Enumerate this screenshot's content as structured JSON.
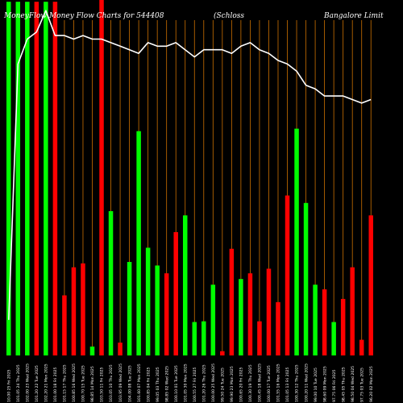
{
  "chart_data": {
    "type": "bar",
    "title_segments": [
      "MoneyFlow Money Flow Charts for 544408",
      "(Schloss",
      "Bangalore Limit"
    ],
    "colors": {
      "background": "#000000",
      "up": "#00ff00",
      "down": "#ff0000",
      "grid": "#cc7000",
      "line": "#ffffff"
    },
    "ylim": [
      0,
      100
    ],
    "line_ylim": [
      0,
      100
    ],
    "bars": [
      {
        "label": "10.00 25 Fri 2025",
        "value": 99.5,
        "direction": "up"
      },
      {
        "label": "101.05 24 Thu 2025",
        "value": 99.5,
        "direction": "up"
      },
      {
        "label": "102.00 23 Wed 2025",
        "value": 99.5,
        "direction": "up"
      },
      {
        "label": "101.20 22 Tue 2025",
        "value": 99.5,
        "direction": "down"
      },
      {
        "label": "102.20 21 Mon 2025",
        "value": 99.5,
        "direction": "up"
      },
      {
        "label": "101.00 18 Fri 2025",
        "value": 99.5,
        "direction": "down"
      },
      {
        "label": "101.15 17 Thu 2025",
        "value": 16.9,
        "direction": "down"
      },
      {
        "label": "100.85 16 Wed 2025",
        "value": 24.8,
        "direction": "down"
      },
      {
        "label": "100.70 15 Tue 2025",
        "value": 25.9,
        "direction": "down"
      },
      {
        "label": "98.85 14 Mon 2025",
        "value": 2.5,
        "direction": "up"
      },
      {
        "label": "103.50 11 Fri 2025",
        "value": 100,
        "direction": "down"
      },
      {
        "label": "103.05 10 Thu 2025",
        "value": 40.6,
        "direction": "up"
      },
      {
        "label": "103.95 09 Wed 2025",
        "value": 3.6,
        "direction": "down"
      },
      {
        "label": "104.00 08 Tue 2025",
        "value": 26.3,
        "direction": "up"
      },
      {
        "label": "101.60 07 Mon 2025",
        "value": 63.1,
        "direction": "up"
      },
      {
        "label": "100.85 04 Fri 2025",
        "value": 30.3,
        "direction": "up"
      },
      {
        "label": "99.05 03 Thu 2025",
        "value": 25.3,
        "direction": "up"
      },
      {
        "label": "98.85 02 Wed 2025",
        "value": 23.1,
        "direction": "down"
      },
      {
        "label": "100.10 01 Tue 2025",
        "value": 34.7,
        "direction": "down"
      },
      {
        "label": "101.05 30 Mon 2025",
        "value": 39.4,
        "direction": "up"
      },
      {
        "label": "100.55 27 Fri 2025",
        "value": 9.4,
        "direction": "up"
      },
      {
        "label": "101.20 26 Thu 2025",
        "value": 9.6,
        "direction": "up"
      },
      {
        "label": "100.00 25 Wed 2025",
        "value": 19.9,
        "direction": "up"
      },
      {
        "label": "99.50 24 Tue 2025",
        "value": 1.2,
        "direction": "down"
      },
      {
        "label": "99.90 23 Mon 2025",
        "value": 30.0,
        "direction": "down"
      },
      {
        "label": "100.65 20 Fri 2025",
        "value": 21.5,
        "direction": "up"
      },
      {
        "label": "100.30 19 Thu 2025",
        "value": 23.1,
        "direction": "down"
      },
      {
        "label": "100.45 18 Wed 2025",
        "value": 9.6,
        "direction": "down"
      },
      {
        "label": "100.00 17 Tue 2025",
        "value": 24.4,
        "direction": "down"
      },
      {
        "label": "101.55 16 Mon 2025",
        "value": 15.0,
        "direction": "down"
      },
      {
        "label": "101.05 13 Fri 2025",
        "value": 45.0,
        "direction": "down"
      },
      {
        "label": "100.30 12 Thu 2025",
        "value": 63.8,
        "direction": "up"
      },
      {
        "label": "100.20 11 Wed 2025",
        "value": 42.9,
        "direction": "up"
      },
      {
        "label": "99.00 10 Tue 2025",
        "value": 19.9,
        "direction": "up"
      },
      {
        "label": "98.60 09 Mon 2025",
        "value": 18.6,
        "direction": "down"
      },
      {
        "label": "97.75 06 Fri 2025",
        "value": 9.4,
        "direction": "up"
      },
      {
        "label": "98.45 05 Thu 2025",
        "value": 15.9,
        "direction": "down"
      },
      {
        "label": "98.50 04 Wed 2025",
        "value": 24.8,
        "direction": "down"
      },
      {
        "label": "97.75 03 Tue 2025",
        "value": 4.4,
        "direction": "down"
      },
      {
        "label": "96.20 02 Mon 2025",
        "value": 39.4,
        "direction": "down"
      }
    ],
    "price_line": [
      10,
      82,
      89,
      91,
      97,
      90,
      90,
      89,
      90,
      89,
      89,
      88,
      87,
      86,
      85,
      88,
      87,
      87,
      88,
      86,
      84,
      86,
      86,
      86,
      85,
      87,
      88,
      86,
      85,
      83,
      82,
      80,
      76,
      75,
      73,
      73,
      73,
      72,
      71,
      72
    ]
  }
}
